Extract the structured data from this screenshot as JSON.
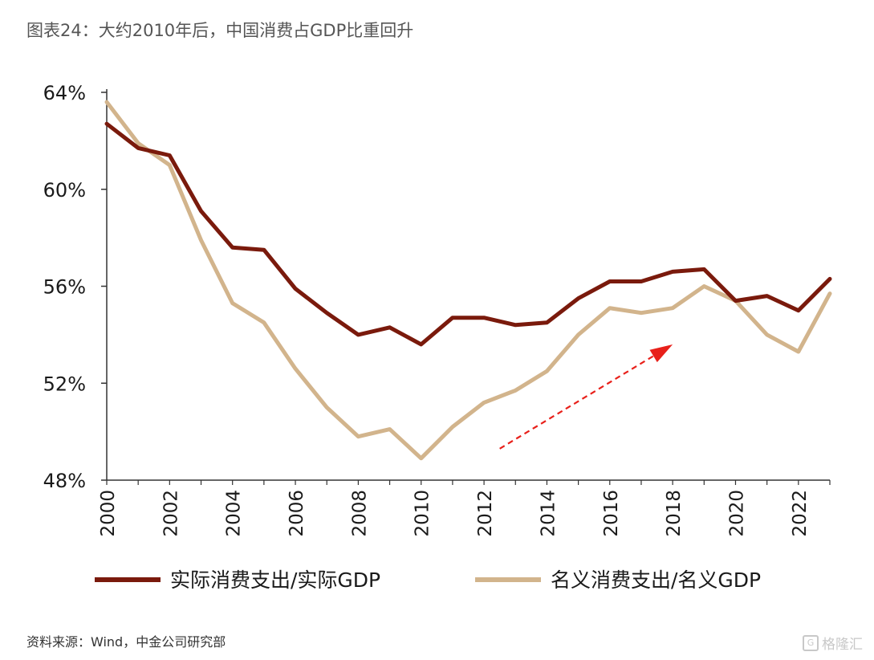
{
  "header": {
    "title": "图表24：大约2010年后，中国消费占GDP比重回升"
  },
  "footer": {
    "source": "资料来源：Wind，中金公司研究部",
    "watermark": "格隆汇"
  },
  "colors": {
    "real": "#7a1a0c",
    "nominal": "#d2b48c",
    "arrow": "#e8201a",
    "axis": "#333333"
  },
  "chart_data": {
    "type": "line",
    "x": [
      2000,
      2001,
      2002,
      2003,
      2004,
      2005,
      2006,
      2007,
      2008,
      2009,
      2010,
      2011,
      2012,
      2013,
      2014,
      2015,
      2016,
      2017,
      2018,
      2019,
      2020,
      2021,
      2022,
      2023
    ],
    "xticks": [
      "2000",
      "2002",
      "2004",
      "2006",
      "2008",
      "2010",
      "2012",
      "2014",
      "2016",
      "2018",
      "2020",
      "2022"
    ],
    "ylim": [
      48,
      64
    ],
    "yticks": [
      "48%",
      "52%",
      "56%",
      "60%",
      "64%"
    ],
    "series": [
      {
        "name": "实际消费支出/实际GDP",
        "color": "#7a1a0c",
        "values": [
          62.7,
          61.7,
          61.4,
          59.1,
          57.6,
          57.5,
          55.9,
          54.9,
          54.0,
          54.3,
          53.6,
          54.7,
          54.7,
          54.4,
          54.5,
          55.5,
          56.2,
          56.2,
          56.6,
          56.7,
          55.4,
          55.6,
          55.0,
          56.3
        ]
      },
      {
        "name": "名义消费支出/名义GDP",
        "color": "#d2b48c",
        "values": [
          63.6,
          61.9,
          61.0,
          57.9,
          55.3,
          54.5,
          52.6,
          51.0,
          49.8,
          50.1,
          48.9,
          50.2,
          51.2,
          51.7,
          52.5,
          54.0,
          55.1,
          54.9,
          55.1,
          56.0,
          55.4,
          54.0,
          53.3,
          55.7
        ]
      }
    ],
    "legend": "bottom",
    "annotation": {
      "type": "arrow",
      "from": [
        2012.5,
        49.3
      ],
      "to": [
        2018,
        53.6
      ]
    }
  }
}
